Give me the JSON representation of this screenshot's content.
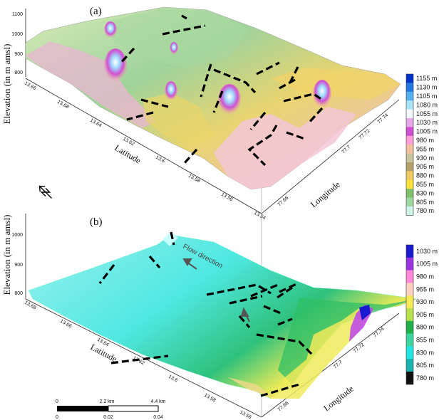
{
  "panel_a": {
    "label": "(a)",
    "ylabel": "Elevation (in m amsl)",
    "elev_ticks": [
      "1100",
      "1000",
      "900",
      "800"
    ],
    "lat_label": "Latitude",
    "lat_ticks": [
      "13.66",
      "13.68",
      "13.64",
      "13.62",
      "13.6",
      "13.58",
      "13.56",
      "13.54"
    ],
    "lon_label": "Longitude",
    "lon_ticks": [
      "77.66",
      "77.7",
      "77.72",
      "77.74"
    ],
    "colorbar": [
      "1155 m",
      "1130 m",
      "1105 m",
      "1080 m",
      "1055 m",
      "1030 m",
      "1005 m",
      "980 m",
      "955 m",
      "930 m",
      "905 m",
      "880 m",
      "855 m",
      "830 m",
      "805 m",
      "780 m"
    ],
    "colorbar_colors": [
      "#0033cc",
      "#2277e0",
      "#55b0f0",
      "#a9e4f6",
      "#f3f6fb",
      "#e8a7e6",
      "#cf4fd0",
      "#ff9fd6",
      "#f3c0a0",
      "#c8c6a0",
      "#b5a06a",
      "#f0c860",
      "#fde03a",
      "#7fc16a",
      "#9ed6a2",
      "#cff5ea"
    ]
  },
  "panel_b": {
    "label": "(b)",
    "ylabel": "Elevation (in m amsl)",
    "elev_ticks": [
      "1000",
      "900",
      "800"
    ],
    "lat_label": "Latitude",
    "lat_ticks": [
      "13.68",
      "13.66",
      "13.64",
      "13.62",
      "13.6",
      "13.58",
      "13.56"
    ],
    "lon_label": "Longitude",
    "lon_ticks": [
      "77.66",
      "77.7",
      "77.72",
      "77.74"
    ],
    "flow_label": "Flow direction",
    "colorbar": [
      "1030 m",
      "1005 m",
      "980 m",
      "955 m",
      "930 m",
      "905 m",
      "880 m",
      "855 m",
      "830 m",
      "805 m",
      "780 m"
    ],
    "colorbar_colors": [
      "#1a1ad0",
      "#9a33e0",
      "#ff88d8",
      "#ffd0c0",
      "#f6ea56",
      "#b7e24c",
      "#1fb04a",
      "#3ed6a0",
      "#21e5e0",
      "#19b3b0",
      "#101010"
    ]
  },
  "scalebar": {
    "km_labels": [
      "0",
      "2.2 km",
      "4.4 km"
    ],
    "deg_labels": [
      "0",
      "0.02",
      "0.04"
    ]
  }
}
